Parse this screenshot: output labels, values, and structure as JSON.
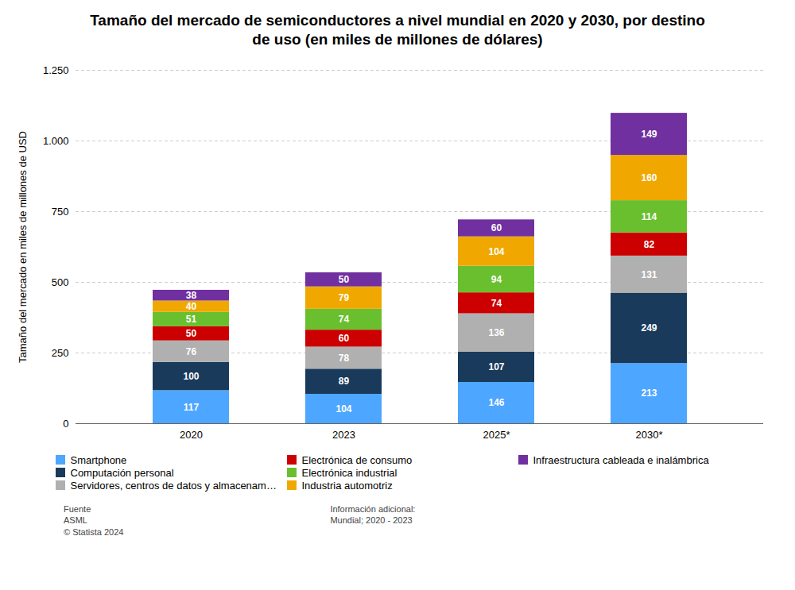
{
  "chart_data": {
    "type": "bar",
    "stacked": true,
    "title": "Tamaño del mercado de semiconductores a nivel mundial en 2020 y 2030, por destino\nde uso (en miles de millones de dólares)",
    "ylabel": "Tamaño del mercado en miles de millones de USD",
    "categories": [
      "2020",
      "2023",
      "2025*",
      "2030*"
    ],
    "series": [
      {
        "name": "Smartphone",
        "color": "#4da6ff",
        "values": [
          117,
          104,
          146,
          213
        ]
      },
      {
        "name": "Computación personal",
        "color": "#1a3a5c",
        "values": [
          100,
          89,
          107,
          249
        ]
      },
      {
        "name": "Servidores, centros de datos y almacenamiento",
        "color": "#b0b0b0",
        "values": [
          76,
          78,
          136,
          131
        ]
      },
      {
        "name": "Electrónica de consumo",
        "color": "#cc0000",
        "values": [
          50,
          60,
          74,
          82
        ]
      },
      {
        "name": "Electrónica industrial",
        "color": "#6abf2e",
        "values": [
          51,
          74,
          94,
          114
        ]
      },
      {
        "name": "Industria automotriz",
        "color": "#f0a800",
        "values": [
          40,
          79,
          104,
          160
        ]
      },
      {
        "name": "Infraestructura cableada e inalámbrica",
        "color": "#7030a0",
        "values": [
          38,
          50,
          60,
          149
        ]
      }
    ],
    "ylim": [
      0,
      1250
    ],
    "yticks": [
      0,
      250,
      500,
      750,
      {
        "value": 1000,
        "label": "1.000"
      },
      {
        "value": 1250,
        "label": "1.250"
      }
    ],
    "grid": true,
    "data_labels": true,
    "legend": "bottom",
    "annotations": [
      "Fuente\nASML\n© Statista 2024",
      "Información adicional:\nMundial; 2020 - 2023"
    ]
  }
}
